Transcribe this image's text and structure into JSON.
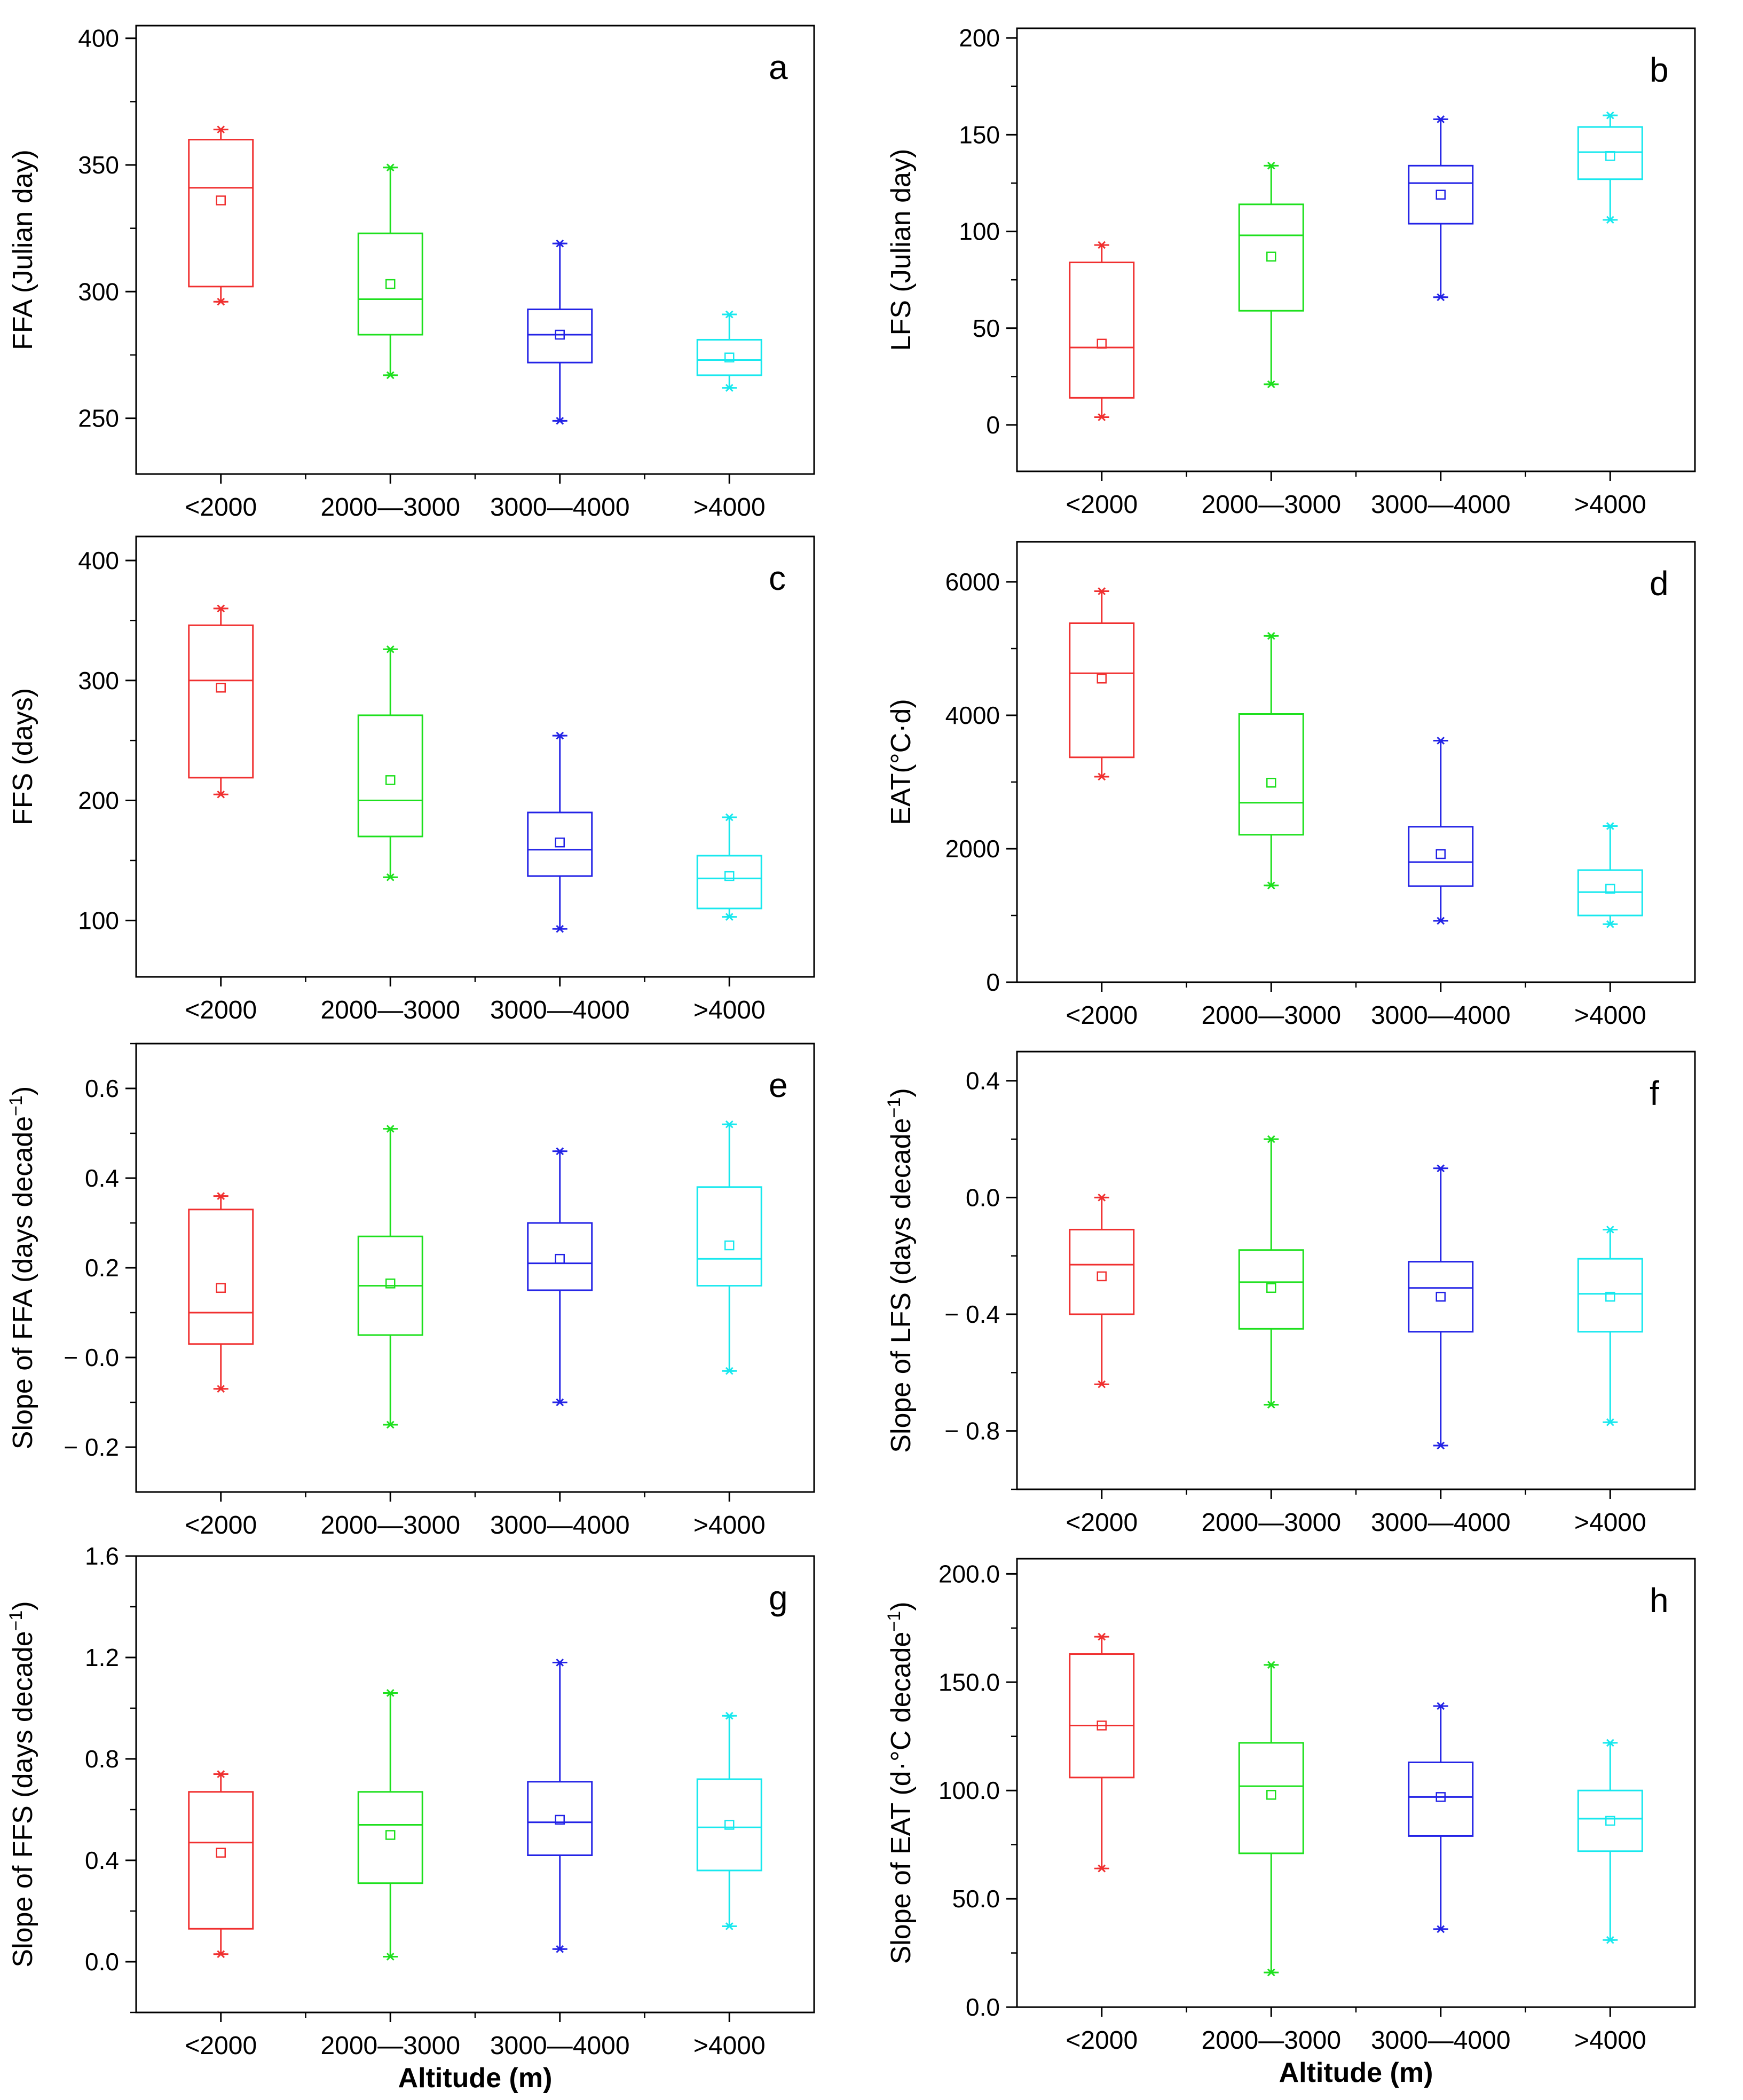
{
  "chart_data": [
    {
      "type": "box",
      "panel": "a",
      "categories": [
        "<2000",
        "2000—3000",
        "3000—4000",
        ">4000"
      ],
      "colors": [
        "#f03030",
        "#1ee01e",
        "#2323e6",
        "#18e8ee"
      ],
      "ylabel": "FFA (Julian day)",
      "xlabel": "",
      "ylim": [
        228,
        405
      ],
      "yticks": [
        250,
        300,
        350,
        400
      ],
      "ytick_labels": [
        "250",
        "300",
        "350",
        "400"
      ],
      "boxes": [
        {
          "min": 296,
          "q1": 302,
          "median": 341,
          "q3": 360,
          "max": 364,
          "mean": 336
        },
        {
          "min": 267,
          "q1": 283,
          "median": 297,
          "q3": 323,
          "max": 349,
          "mean": 303
        },
        {
          "min": 249,
          "q1": 272,
          "median": 283,
          "q3": 293,
          "max": 319,
          "mean": 283
        },
        {
          "min": 262,
          "q1": 267,
          "median": 273,
          "q3": 281,
          "max": 291,
          "mean": 274
        }
      ],
      "grid": false
    },
    {
      "type": "box",
      "panel": "b",
      "categories": [
        "<2000",
        "2000—3000",
        "3000—4000",
        ">4000"
      ],
      "colors": [
        "#f03030",
        "#1ee01e",
        "#2323e6",
        "#18e8ee"
      ],
      "ylabel": "LFS (Julian day)",
      "xlabel": "",
      "ylim": [
        -24,
        205
      ],
      "yticks": [
        0,
        50,
        100,
        150,
        200
      ],
      "ytick_labels": [
        "0",
        "50",
        "100",
        "150",
        "200"
      ],
      "boxes": [
        {
          "min": 4,
          "q1": 14,
          "median": 40,
          "q3": 84,
          "max": 93,
          "mean": 42
        },
        {
          "min": 21,
          "q1": 59,
          "median": 98,
          "q3": 114,
          "max": 134,
          "mean": 87
        },
        {
          "min": 66,
          "q1": 104,
          "median": 125,
          "q3": 134,
          "max": 158,
          "mean": 119
        },
        {
          "min": 106,
          "q1": 127,
          "median": 141,
          "q3": 154,
          "max": 160,
          "mean": 139
        }
      ],
      "grid": false
    },
    {
      "type": "box",
      "panel": "c",
      "categories": [
        "<2000",
        "2000—3000",
        "3000—4000",
        ">4000"
      ],
      "colors": [
        "#f03030",
        "#1ee01e",
        "#2323e6",
        "#18e8ee"
      ],
      "ylabel": "FFS (days)",
      "xlabel": "",
      "ylim": [
        53,
        420
      ],
      "yticks": [
        100,
        200,
        300,
        400
      ],
      "ytick_labels": [
        "100",
        "200",
        "300",
        "400"
      ],
      "boxes": [
        {
          "min": 205,
          "q1": 219,
          "median": 300,
          "q3": 346,
          "max": 360,
          "mean": 294
        },
        {
          "min": 136,
          "q1": 170,
          "median": 200,
          "q3": 271,
          "max": 326,
          "mean": 217
        },
        {
          "min": 93,
          "q1": 137,
          "median": 159,
          "q3": 190,
          "max": 254,
          "mean": 165
        },
        {
          "min": 103,
          "q1": 110,
          "median": 135,
          "q3": 154,
          "max": 186,
          "mean": 137
        }
      ],
      "grid": false
    },
    {
      "type": "box",
      "panel": "d",
      "categories": [
        "<2000",
        "2000—3000",
        "3000—4000",
        ">4000"
      ],
      "colors": [
        "#f03030",
        "#1ee01e",
        "#2323e6",
        "#18e8ee"
      ],
      "ylabel": "EAT(°C·d)",
      "xlabel": "",
      "ylim": [
        0,
        6600
      ],
      "yticks": [
        0,
        2000,
        4000,
        6000
      ],
      "ytick_labels": [
        "0",
        "2000",
        "4000",
        "6000"
      ],
      "boxes": [
        {
          "min": 3080,
          "q1": 3370,
          "median": 4630,
          "q3": 5380,
          "max": 5860,
          "mean": 4550
        },
        {
          "min": 1450,
          "q1": 2210,
          "median": 2690,
          "q3": 4020,
          "max": 5190,
          "mean": 2990
        },
        {
          "min": 920,
          "q1": 1440,
          "median": 1800,
          "q3": 2330,
          "max": 3620,
          "mean": 1920
        },
        {
          "min": 870,
          "q1": 1000,
          "median": 1350,
          "q3": 1680,
          "max": 2340,
          "mean": 1400
        }
      ],
      "grid": false
    },
    {
      "type": "box",
      "panel": "e",
      "categories": [
        "<2000",
        "2000—3000",
        "3000—4000",
        ">4000"
      ],
      "colors": [
        "#f03030",
        "#1ee01e",
        "#2323e6",
        "#18e8ee"
      ],
      "ylabel": "Slope of FFA (days decade",
      "ylabel_sup": "−1",
      "ylabel_close": ")",
      "xlabel": "",
      "ylim": [
        -0.3,
        0.7
      ],
      "yticks": [
        -0.2,
        0.0,
        0.2,
        0.4,
        0.6
      ],
      "ytick_labels": [
        "− 0.2",
        "− 0.0",
        "0.2",
        "0.4",
        "0.6"
      ],
      "boxes": [
        {
          "min": -0.07,
          "q1": 0.03,
          "median": 0.1,
          "q3": 0.33,
          "max": 0.36,
          "mean": 0.155
        },
        {
          "min": -0.15,
          "q1": 0.05,
          "median": 0.16,
          "q3": 0.27,
          "max": 0.51,
          "mean": 0.165
        },
        {
          "min": -0.1,
          "q1": 0.15,
          "median": 0.21,
          "q3": 0.3,
          "max": 0.46,
          "mean": 0.22
        },
        {
          "min": -0.03,
          "q1": 0.16,
          "median": 0.22,
          "q3": 0.38,
          "max": 0.52,
          "mean": 0.25
        }
      ],
      "grid": false
    },
    {
      "type": "box",
      "panel": "f",
      "categories": [
        "<2000",
        "2000—3000",
        "3000—4000",
        ">4000"
      ],
      "colors": [
        "#f03030",
        "#1ee01e",
        "#2323e6",
        "#18e8ee"
      ],
      "ylabel": "Slope of LFS (days decade",
      "ylabel_sup": "−1",
      "ylabel_close": ")",
      "xlabel": "",
      "ylim": [
        -1.0,
        0.5
      ],
      "yticks": [
        -0.8,
        -0.4,
        0.0,
        0.4
      ],
      "ytick_labels": [
        "− 0.8",
        "− 0.4",
        "0.0",
        "0.4"
      ],
      "boxes": [
        {
          "min": -0.64,
          "q1": -0.4,
          "median": -0.23,
          "q3": -0.11,
          "max": 0.0,
          "mean": -0.27
        },
        {
          "min": -0.71,
          "q1": -0.45,
          "median": -0.29,
          "q3": -0.18,
          "max": 0.2,
          "mean": -0.31
        },
        {
          "min": -0.85,
          "q1": -0.46,
          "median": -0.31,
          "q3": -0.22,
          "max": 0.1,
          "mean": -0.34
        },
        {
          "min": -0.77,
          "q1": -0.46,
          "median": -0.33,
          "q3": -0.21,
          "max": -0.11,
          "mean": -0.34
        }
      ],
      "grid": false
    },
    {
      "type": "box",
      "panel": "g",
      "categories": [
        "<2000",
        "2000—3000",
        "3000—4000",
        ">4000"
      ],
      "colors": [
        "#f03030",
        "#1ee01e",
        "#2323e6",
        "#18e8ee"
      ],
      "ylabel": "Slope of FFS (days decade",
      "ylabel_sup": "−1",
      "ylabel_close": ")",
      "xlabel": "Altitude (m)",
      "ylim": [
        -0.2,
        1.6
      ],
      "yticks": [
        0.0,
        0.4,
        0.8,
        1.2,
        1.6
      ],
      "ytick_labels": [
        "0.0",
        "0.4",
        "0.8",
        "1.2",
        "1.6"
      ],
      "boxes": [
        {
          "min": 0.03,
          "q1": 0.13,
          "median": 0.47,
          "q3": 0.67,
          "max": 0.74,
          "mean": 0.43
        },
        {
          "min": 0.02,
          "q1": 0.31,
          "median": 0.54,
          "q3": 0.67,
          "max": 1.06,
          "mean": 0.5
        },
        {
          "min": 0.05,
          "q1": 0.42,
          "median": 0.55,
          "q3": 0.71,
          "max": 1.18,
          "mean": 0.56
        },
        {
          "min": 0.14,
          "q1": 0.36,
          "median": 0.53,
          "q3": 0.72,
          "max": 0.97,
          "mean": 0.54
        }
      ],
      "grid": false
    },
    {
      "type": "box",
      "panel": "h",
      "categories": [
        "<2000",
        "2000—3000",
        "3000—4000",
        ">4000"
      ],
      "colors": [
        "#f03030",
        "#1ee01e",
        "#2323e6",
        "#18e8ee"
      ],
      "ylabel": "Slope of EAT (d·°C decade",
      "ylabel_sup": "−1",
      "ylabel_close": ")",
      "xlabel": "Altitude (m)",
      "ylim": [
        0,
        207
      ],
      "yticks": [
        0,
        50,
        100,
        150,
        200
      ],
      "ytick_labels": [
        "0.0",
        "50.0",
        "100.0",
        "150.0",
        "200.0"
      ],
      "boxes": [
        {
          "min": 64,
          "q1": 106,
          "median": 130,
          "q3": 163,
          "max": 171,
          "mean": 130
        },
        {
          "min": 16,
          "q1": 71,
          "median": 102,
          "q3": 122,
          "max": 158,
          "mean": 98
        },
        {
          "min": 36,
          "q1": 79,
          "median": 97,
          "q3": 113,
          "max": 139,
          "mean": 97
        },
        {
          "min": 31,
          "q1": 72,
          "median": 87,
          "q3": 100,
          "max": 122,
          "mean": 86
        }
      ],
      "grid": false
    }
  ]
}
